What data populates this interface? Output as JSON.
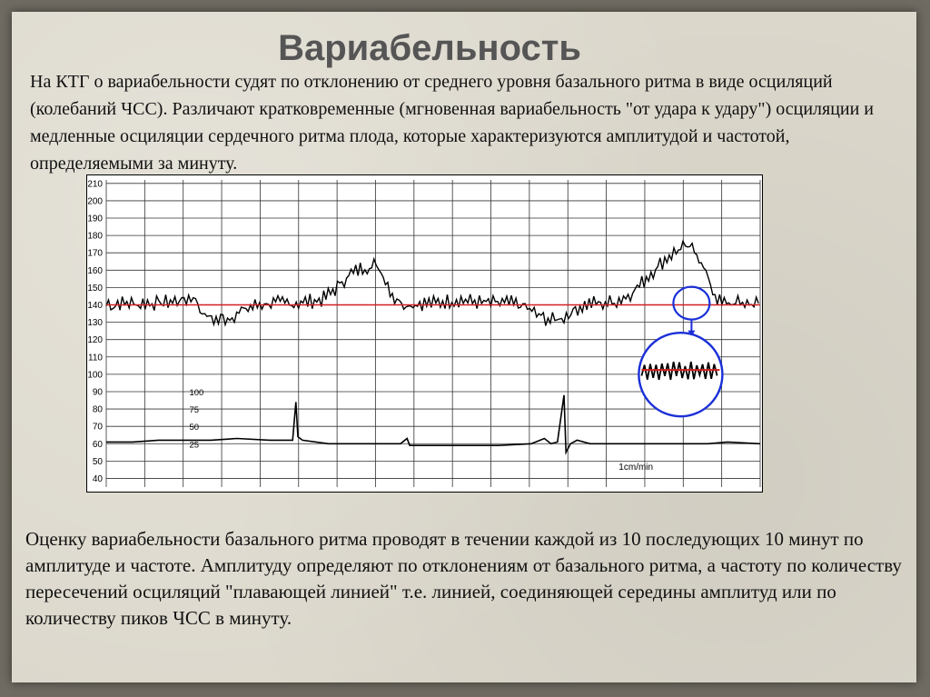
{
  "title": "Вариабельность",
  "paragraph_1": "На КТГ о вариабельности судят по отклонению от среднего уровня базального ритма в виде осциляций (колебаний ЧСС). Различают кратковременные (мгновенная вариабельность \"от удара к удару\") осциляции и медленные осциляции сердечного ритма плода, которые характеризуются амплитудой и частотой, определяемыми за минуту.",
  "paragraph_2": "Оценку вариабельности базального ритма проводят в течении каждой из 10 последующих 10 минут по амплитуде и частоте. Амплитуду определяют по отклонениям от базального ритма, а частоту по количеству пересечений осциляций \"плавающей линией\" т.е. линией, соединяющей середины амплитуд или по количеству пиков ЧСС в минуту.",
  "chart_data": {
    "type": "line",
    "y_ticks": [
      210,
      200,
      190,
      180,
      170,
      160,
      150,
      140,
      130,
      120,
      110,
      100,
      90,
      80,
      70,
      60,
      50,
      40
    ],
    "ylim": [
      35,
      212
    ],
    "xlim": [
      0,
      100
    ],
    "grid": true,
    "uterine_scale_labels": [
      "100",
      "75",
      "50",
      "25"
    ],
    "speed_label": "1cm/min",
    "baseline_value": 140,
    "colors": {
      "baseline": "#d42020",
      "highlight_circle": "#1a2fd8",
      "trace": "#000000"
    },
    "series": [
      {
        "kind": "fetal_heart_rate",
        "points": [
          [
            0,
            141
          ],
          [
            2,
            141
          ],
          [
            4,
            141
          ],
          [
            6,
            141
          ],
          [
            8,
            141
          ],
          [
            10,
            142
          ],
          [
            12,
            143
          ],
          [
            13.5,
            145
          ],
          [
            14,
            140
          ],
          [
            15,
            134
          ],
          [
            17,
            131
          ],
          [
            19,
            133
          ],
          [
            21,
            137
          ],
          [
            23,
            140
          ],
          [
            25,
            141
          ],
          [
            27,
            141
          ],
          [
            29,
            141
          ],
          [
            31,
            142
          ],
          [
            33,
            143
          ],
          [
            35,
            149
          ],
          [
            37,
            157
          ],
          [
            39,
            161
          ],
          [
            41,
            163
          ],
          [
            42,
            160
          ],
          [
            43,
            152
          ],
          [
            44,
            144
          ],
          [
            46,
            140
          ],
          [
            48,
            141
          ],
          [
            50,
            141
          ],
          [
            52,
            142
          ],
          [
            54,
            143
          ],
          [
            56,
            142
          ],
          [
            58,
            141
          ],
          [
            60,
            141
          ],
          [
            62,
            141
          ],
          [
            64,
            139
          ],
          [
            66,
            134
          ],
          [
            68,
            131
          ],
          [
            70,
            133
          ],
          [
            72,
            138
          ],
          [
            74,
            141
          ],
          [
            76,
            141
          ],
          [
            78,
            142
          ],
          [
            80,
            146
          ],
          [
            82,
            153
          ],
          [
            84,
            161
          ],
          [
            86,
            168
          ],
          [
            88,
            173
          ],
          [
            90,
            172
          ],
          [
            91,
            165
          ],
          [
            92,
            155
          ],
          [
            93,
            146
          ],
          [
            94,
            141
          ],
          [
            96,
            141
          ],
          [
            98,
            141
          ],
          [
            100,
            141
          ]
        ]
      },
      {
        "kind": "uterine_activity",
        "points": [
          [
            0,
            61
          ],
          [
            4,
            61
          ],
          [
            8,
            62
          ],
          [
            12,
            62
          ],
          [
            16,
            62
          ],
          [
            20,
            63
          ],
          [
            25,
            62
          ],
          [
            28.5,
            62
          ],
          [
            29,
            84
          ],
          [
            29.3,
            64
          ],
          [
            30,
            62
          ],
          [
            34,
            60
          ],
          [
            40,
            60
          ],
          [
            45,
            60
          ],
          [
            46,
            63
          ],
          [
            46.4,
            59
          ],
          [
            50,
            59
          ],
          [
            55,
            59
          ],
          [
            60,
            59
          ],
          [
            65,
            60
          ],
          [
            67,
            63
          ],
          [
            68,
            60
          ],
          [
            69,
            61
          ],
          [
            70,
            88
          ],
          [
            70.3,
            55
          ],
          [
            71,
            60
          ],
          [
            72,
            62
          ],
          [
            74,
            60
          ],
          [
            78,
            60
          ],
          [
            85,
            60
          ],
          [
            92,
            60
          ],
          [
            95,
            61
          ],
          [
            100,
            60
          ]
        ]
      }
    ]
  }
}
